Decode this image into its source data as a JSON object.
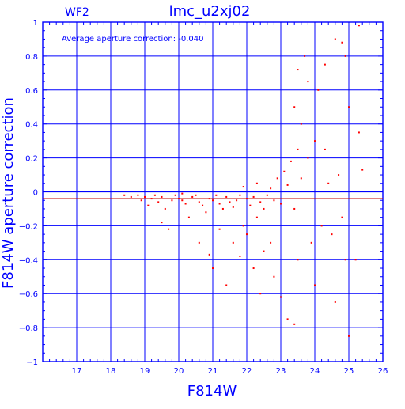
{
  "chart_data": {
    "type": "scatter",
    "title": "lmc_u2xj02",
    "subtitle": "WF2",
    "annotation": "Average aperture correction: -0.040",
    "xlabel": "F814W",
    "ylabel": "F814W aperture correction",
    "xlim": [
      16,
      26
    ],
    "ylim": [
      -1,
      1
    ],
    "x_ticks": [
      17,
      18,
      19,
      20,
      21,
      22,
      23,
      24,
      25,
      26
    ],
    "y_ticks": [
      1,
      0.8,
      0.6,
      0.4,
      0.2,
      0,
      -0.2,
      -0.4,
      -0.6,
      -0.8,
      -1
    ],
    "x_tick_labels": [
      "17",
      "18",
      "19",
      "20",
      "21",
      "22",
      "23",
      "24",
      "25",
      "26"
    ],
    "y_tick_labels": [
      "1",
      "0.8",
      "0.6",
      "0.4",
      "0.2",
      "0",
      "−0.2",
      "−0.4",
      "−0.6",
      "−0.8",
      "−1"
    ],
    "grid": true,
    "reference_lines": [
      {
        "y": 0,
        "color": "#0000ff"
      },
      {
        "y": -0.04,
        "color": "#c00000"
      }
    ],
    "series": [
      {
        "color": "#ff0000",
        "points": [
          [
            18.6,
            -0.03
          ],
          [
            18.8,
            -0.02
          ],
          [
            18.9,
            -0.05
          ],
          [
            19.0,
            -0.03
          ],
          [
            19.1,
            -0.08
          ],
          [
            19.2,
            -0.04
          ],
          [
            19.3,
            -0.02
          ],
          [
            19.4,
            -0.06
          ],
          [
            19.5,
            -0.03
          ],
          [
            19.6,
            -0.1
          ],
          [
            19.7,
            -0.22
          ],
          [
            19.8,
            -0.05
          ],
          [
            19.9,
            -0.02
          ],
          [
            20.0,
            -0.04
          ],
          [
            20.1,
            -0.01
          ],
          [
            20.2,
            -0.07
          ],
          [
            20.3,
            -0.15
          ],
          [
            20.4,
            -0.03
          ],
          [
            20.5,
            -0.02
          ],
          [
            20.6,
            -0.06
          ],
          [
            20.7,
            -0.08
          ],
          [
            20.8,
            -0.12
          ],
          [
            20.9,
            -0.04
          ],
          [
            21.0,
            -0.05
          ],
          [
            21.1,
            -0.02
          ],
          [
            21.2,
            -0.07
          ],
          [
            21.3,
            -0.1
          ],
          [
            21.4,
            -0.03
          ],
          [
            21.5,
            -0.06
          ],
          [
            21.6,
            -0.09
          ],
          [
            21.7,
            -0.05
          ],
          [
            21.8,
            -0.02
          ],
          [
            21.9,
            0.03
          ],
          [
            22.0,
            -0.04
          ],
          [
            22.1,
            -0.08
          ],
          [
            22.2,
            -0.03
          ],
          [
            22.3,
            0.05
          ],
          [
            22.4,
            -0.06
          ],
          [
            22.5,
            -0.1
          ],
          [
            22.6,
            -0.02
          ],
          [
            22.7,
            0.02
          ],
          [
            22.8,
            -0.05
          ],
          [
            22.9,
            0.08
          ],
          [
            23.0,
            -0.07
          ],
          [
            23.1,
            0.12
          ],
          [
            23.2,
            0.04
          ],
          [
            23.3,
            0.18
          ],
          [
            23.4,
            -0.1
          ],
          [
            23.5,
            0.25
          ],
          [
            23.6,
            0.08
          ],
          [
            20.6,
            -0.3
          ],
          [
            20.9,
            -0.37
          ],
          [
            21.0,
            -0.45
          ],
          [
            21.4,
            -0.55
          ],
          [
            21.6,
            -0.3
          ],
          [
            21.8,
            -0.38
          ],
          [
            22.0,
            -0.25
          ],
          [
            22.2,
            -0.45
          ],
          [
            22.4,
            -0.6
          ],
          [
            22.5,
            -0.35
          ],
          [
            22.8,
            -0.5
          ],
          [
            23.0,
            -0.62
          ],
          [
            23.2,
            -0.75
          ],
          [
            23.4,
            -0.78
          ],
          [
            23.5,
            -0.4
          ],
          [
            23.6,
            0.4
          ],
          [
            23.7,
            0.8
          ],
          [
            23.8,
            0.2
          ],
          [
            23.9,
            -0.3
          ],
          [
            24.0,
            0.3
          ],
          [
            24.0,
            -0.55
          ],
          [
            24.2,
            -0.2
          ],
          [
            24.3,
            0.75
          ],
          [
            24.4,
            0.05
          ],
          [
            24.5,
            -0.25
          ],
          [
            24.6,
            -0.65
          ],
          [
            24.7,
            0.1
          ],
          [
            24.8,
            -0.15
          ],
          [
            24.9,
            -0.4
          ],
          [
            25.0,
            0.5
          ],
          [
            25.0,
            -0.85
          ],
          [
            25.2,
            -0.4
          ],
          [
            25.3,
            0.35
          ],
          [
            25.3,
            0.98
          ],
          [
            25.4,
            0.13
          ],
          [
            24.3,
            0.25
          ],
          [
            24.1,
            0.6
          ],
          [
            24.6,
            0.9
          ],
          [
            24.8,
            0.88
          ],
          [
            23.4,
            0.5
          ],
          [
            23.8,
            0.65
          ],
          [
            23.5,
            0.72
          ],
          [
            24.9,
            0.8
          ],
          [
            21.9,
            -0.2
          ],
          [
            22.3,
            -0.15
          ],
          [
            21.2,
            -0.22
          ],
          [
            22.7,
            -0.3
          ],
          [
            20.1,
            -0.05
          ],
          [
            19.5,
            -0.18
          ],
          [
            18.4,
            -0.02
          ]
        ]
      }
    ]
  }
}
